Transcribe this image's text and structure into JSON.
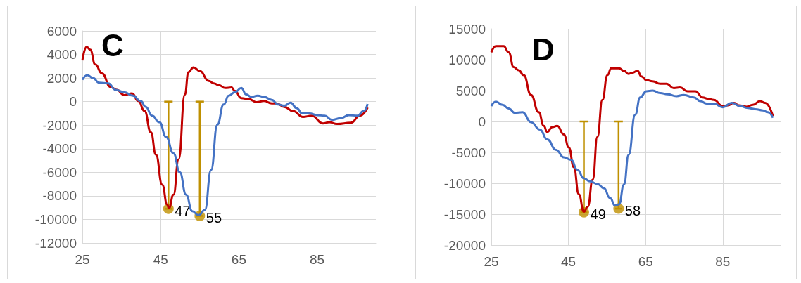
{
  "chart_data": [
    {
      "type": "line",
      "title": "C",
      "xlim": [
        25,
        100
      ],
      "xticks": [
        25,
        45,
        65,
        85
      ],
      "ylim": [
        -12000,
        6000
      ],
      "yticks": [
        -12000,
        -10000,
        -8000,
        -6000,
        -4000,
        -2000,
        0,
        2000,
        4000,
        6000
      ],
      "grid": true,
      "marker": "none",
      "annotations": [
        {
          "text": "47",
          "x": 47,
          "y": -9100
        },
        {
          "text": "55",
          "x": 55,
          "y": -9700
        }
      ],
      "series": [
        {
          "color": "#c00000",
          "x": [
            25,
            26.1,
            27,
            28.3,
            30,
            32.2,
            33.8,
            35.7,
            37.7,
            39.3,
            40.9,
            42.5,
            43.8,
            45.4,
            46.7,
            47.1,
            48.3,
            49.6,
            51.2,
            52.1,
            53.4,
            55,
            57.3,
            58.6,
            59.9,
            61.5,
            63.1,
            64,
            65.6,
            67.6,
            69.5,
            71.4,
            73.4,
            74.6,
            76.6,
            78.8,
            81.4,
            83.6,
            86.5,
            88.1,
            90.1,
            93.6,
            95.9,
            97.9
          ],
          "values": [
            3500,
            4650,
            4400,
            3150,
            2400,
            1250,
            1000,
            550,
            700,
            50,
            -800,
            -2600,
            -4500,
            -7050,
            -8750,
            -9050,
            -7900,
            -4900,
            600,
            2500,
            2900,
            2600,
            1750,
            1550,
            1400,
            1150,
            1200,
            900,
            300,
            200,
            -50,
            50,
            -150,
            -150,
            -450,
            -800,
            -1300,
            -1200,
            -1850,
            -1750,
            -1900,
            -1800,
            -1200,
            -500
          ]
        },
        {
          "color": "#4472c4",
          "x": [
            25,
            26.3,
            27.7,
            29.3,
            31.6,
            33.5,
            35.7,
            37.9,
            39.9,
            41.2,
            42.8,
            44.7,
            46.4,
            48.3,
            49.9,
            51.5,
            53.1,
            54.7,
            56.3,
            57.9,
            59.5,
            61.1,
            62.4,
            64,
            65.6,
            66.9,
            68.2,
            69.8,
            71.4,
            73.4,
            75,
            76.6,
            78.2,
            79.8,
            81.1,
            83,
            85,
            86.9,
            88.8,
            91.1,
            93.1,
            95.3,
            96.9,
            97.9
          ],
          "values": [
            1850,
            2250,
            2000,
            1600,
            1550,
            1000,
            800,
            500,
            50,
            -450,
            -1200,
            -1750,
            -3000,
            -4400,
            -6000,
            -7900,
            -9300,
            -9650,
            -9200,
            -5800,
            -1950,
            -250,
            500,
            800,
            1150,
            600,
            400,
            500,
            400,
            150,
            -250,
            -350,
            -100,
            -550,
            -1000,
            -1000,
            -1150,
            -1200,
            -1550,
            -1400,
            -1150,
            -1200,
            -800,
            -200
          ]
        },
        {
          "type": "scatter",
          "marker": "circle",
          "color": "#bf9000",
          "x": [
            47,
            55
          ],
          "values": [
            -9100,
            -9700
          ],
          "errors": [
            [
              -9100,
              0
            ],
            [
              -9700,
              0
            ]
          ]
        }
      ]
    },
    {
      "type": "line",
      "title": "D",
      "xlim": [
        25,
        100
      ],
      "xticks": [
        25,
        45,
        65,
        85
      ],
      "ylim": [
        -20000,
        15000
      ],
      "yticks": [
        -20000,
        -15000,
        -10000,
        -5000,
        0,
        5000,
        10000,
        15000
      ],
      "grid": true,
      "marker": "none",
      "annotations": [
        {
          "text": "49",
          "x": 49,
          "y": -14700
        },
        {
          "text": "58",
          "x": 58,
          "y": -14100
        }
      ],
      "series": [
        {
          "color": "#c00000",
          "x": [
            25,
            26.2,
            28.2,
            29.5,
            30.8,
            32.1,
            33.4,
            35.3,
            37.3,
            38.6,
            39.5,
            40.8,
            42.1,
            43.8,
            45.1,
            46.4,
            47.7,
            49,
            50,
            51.3,
            52.5,
            53.8,
            55.1,
            56.1,
            58.1,
            59.4,
            60.6,
            61.6,
            62.9,
            63.9,
            65.2,
            66.8,
            68.8,
            70.4,
            72.3,
            73.9,
            75.9,
            77.9,
            79.8,
            81.1,
            82.7,
            85,
            86.3,
            87.9,
            89.2,
            91.2,
            92.8,
            94.7,
            96,
            98
          ],
          "values": [
            11200,
            12200,
            12200,
            11200,
            8800,
            8300,
            7500,
            4300,
            1500,
            -700,
            -1700,
            -900,
            -700,
            -2100,
            -4200,
            -7400,
            -11800,
            -14600,
            -13800,
            -9400,
            -2500,
            3500,
            7500,
            8600,
            8600,
            8200,
            7700,
            7900,
            8200,
            7300,
            6700,
            6500,
            6100,
            6100,
            5400,
            5500,
            4900,
            4900,
            3900,
            3700,
            3500,
            2500,
            2600,
            3000,
            2600,
            2400,
            2700,
            3300,
            3000,
            900
          ]
        },
        {
          "color": "#4472c4",
          "x": [
            25,
            26.2,
            27.9,
            29.5,
            31.1,
            33.1,
            35.3,
            37.6,
            39.5,
            41.8,
            43.8,
            45.7,
            47.3,
            49,
            50.6,
            52.5,
            54.2,
            55.8,
            57.1,
            58.1,
            59.4,
            60.6,
            62.3,
            63.6,
            65.2,
            66.8,
            68.8,
            70.7,
            73,
            74.9,
            77.5,
            79.2,
            80.8,
            82.7,
            85,
            87.3,
            89.5,
            91.5,
            93.4,
            95.4,
            96.7,
            98
          ],
          "values": [
            2500,
            3200,
            2700,
            2100,
            1400,
            1500,
            -100,
            -1300,
            -2900,
            -4600,
            -5800,
            -6200,
            -7800,
            -9200,
            -9700,
            -10100,
            -10800,
            -12400,
            -13600,
            -13400,
            -10200,
            -5400,
            1100,
            3900,
            4900,
            5000,
            4600,
            4400,
            4100,
            4300,
            3900,
            3300,
            2900,
            2900,
            2300,
            3000,
            2500,
            2200,
            2000,
            1800,
            1500,
            600
          ]
        },
        {
          "type": "scatter",
          "marker": "circle",
          "color": "#bf9000",
          "x": [
            49,
            58
          ],
          "values": [
            -14700,
            -14100
          ],
          "errors": [
            [
              -14700,
              0
            ],
            [
              -14100,
              0
            ]
          ]
        }
      ]
    }
  ]
}
